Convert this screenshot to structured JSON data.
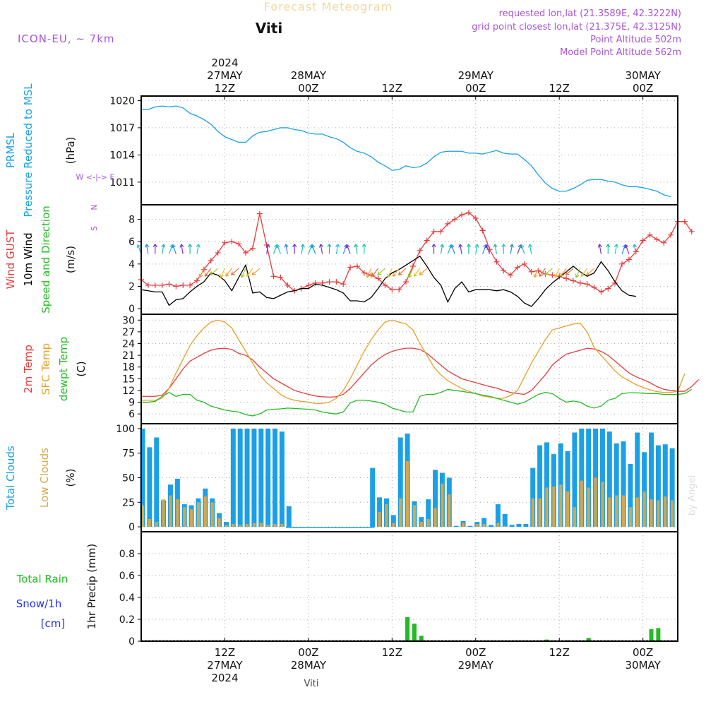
{
  "header": {
    "title": "Forecast Meteogram",
    "location": "Viti",
    "model": "ICON-EU, ~ 7km",
    "requested": "requested lon,lat (21.3589E, 42.3222N)",
    "gridpoint": "grid point closest lon,lat (21.375E, 42.3125N)",
    "point_alt": "Point Altitude 502m",
    "model_alt": "Model Point Altitude 562m",
    "watermark": "by Angel",
    "footer": "Viti"
  },
  "time_axis": {
    "top_labels": [
      {
        "t": 12,
        "lines": [
          "2024",
          "27MAY",
          "12Z"
        ]
      },
      {
        "t": 24,
        "lines": [
          "28MAY",
          "00Z"
        ]
      },
      {
        "t": 36,
        "lines": [
          "12Z"
        ]
      },
      {
        "t": 48,
        "lines": [
          "29MAY",
          "00Z"
        ]
      },
      {
        "t": 60,
        "lines": [
          "12Z"
        ]
      },
      {
        "t": 72,
        "lines": [
          "30MAY",
          "00Z"
        ]
      }
    ],
    "bottom_labels": [
      {
        "t": 12,
        "lines": [
          "12Z",
          "27MAY",
          "2024"
        ]
      },
      {
        "t": 24,
        "lines": [
          "00Z",
          "28MAY"
        ]
      },
      {
        "t": 36,
        "lines": [
          "12Z"
        ]
      },
      {
        "t": 48,
        "lines": [
          "00Z",
          "29MAY"
        ]
      },
      {
        "t": 60,
        "lines": [
          "12Z"
        ]
      },
      {
        "t": 72,
        "lines": [
          "00Z",
          "30MAY"
        ]
      }
    ]
  },
  "chart_data": [
    {
      "type": "line",
      "id": "pressure",
      "ylabel_lines": [
        "PRMSL",
        "Pressure Reduced to MSL"
      ],
      "unit": "(hPa)",
      "ylim": [
        1008.5,
        1020.5
      ],
      "yticks": [
        1011,
        1014,
        1017,
        1020
      ],
      "series": [
        {
          "name": "PRMSL",
          "color": "#1aa0e6",
          "values": [
            1019,
            1019,
            1019.3,
            1019.4,
            1019.3,
            1019.4,
            1019.2,
            1018.6,
            1018.3,
            1017.9,
            1017.4,
            1016.6,
            1016,
            1015.7,
            1015.4,
            1015.4,
            1016.1,
            1016.5,
            1016.6,
            1016.8,
            1017,
            1017,
            1016.8,
            1016.7,
            1016.4,
            1016.3,
            1016.3,
            1016,
            1015.8,
            1015.4,
            1014.8,
            1014.4,
            1014.2,
            1013.8,
            1013.2,
            1012.8,
            1012.3,
            1012.4,
            1012.8,
            1012.6,
            1012.7,
            1013.1,
            1013.8,
            1014.3,
            1014.4,
            1014.4,
            1014.4,
            1014.2,
            1014.2,
            1014.1,
            1014.3,
            1014.5,
            1014.2,
            1014.1,
            1014.1,
            1013.5,
            1012.8,
            1011.8,
            1010.9,
            1010.3,
            1010,
            1010,
            1010.3,
            1010.7,
            1011.2,
            1011.3,
            1011.3,
            1011.1,
            1011,
            1010.7,
            1010.5,
            1010.5,
            1010.4,
            1010.2,
            1010,
            1009.6,
            1009.4
          ]
        }
      ]
    },
    {
      "type": "line",
      "id": "wind",
      "ylabel_lines": [
        "Wind GUST",
        "10m Wind",
        "Speed and Direction"
      ],
      "ylabel_colors": [
        "#e63c3c",
        "#000000",
        "#22bb22"
      ],
      "unit": "(m/s)",
      "compass": [
        "N",
        "W <-|-> E",
        "S"
      ],
      "ylim": [
        -0.5,
        9.3
      ],
      "yticks": [
        0,
        2,
        4,
        6,
        8
      ],
      "series": [
        {
          "name": "Wind GUST",
          "color": "#e63c3c",
          "values": [
            2.6,
            2.1,
            2.1,
            2.1,
            2.2,
            2,
            2.1,
            2.1,
            2.5,
            3.5,
            4.3,
            5,
            5.9,
            6,
            5.8,
            5,
            5.4,
            8.5,
            5.7,
            2.9,
            2.8,
            2.1,
            1.6,
            1.8,
            2.1,
            2.3,
            2.3,
            2.4,
            2.4,
            2.2,
            3.7,
            3.8,
            3.2,
            3,
            2.7,
            2.1,
            1.7,
            1.7,
            2.4,
            3.8,
            5.2,
            6.1,
            6.9,
            6.9,
            7.6,
            8,
            8.4,
            8.6,
            8.1,
            7,
            5.3,
            4.2,
            3.4,
            3,
            3.7,
            4,
            3.3,
            3.4,
            3.1,
            3,
            2.9,
            2.7,
            2.5,
            2.3,
            2.2,
            1.9,
            1.5,
            1.8,
            2.3,
            4,
            4.4,
            5.1,
            6.1,
            6.6,
            6.2,
            5.9,
            6.6,
            7.8,
            7.8,
            6.9
          ]
        },
        {
          "name": "10m Wind",
          "color": "#000000",
          "values": [
            1.7,
            1.6,
            1.5,
            1.5,
            0.3,
            0.8,
            0.9,
            1.5,
            2,
            2.4,
            3.2,
            3,
            2.5,
            1.6,
            2.8,
            3.9,
            1.4,
            1.5,
            1,
            0.9,
            1.2,
            1.5,
            1.6,
            1.8,
            1.8,
            2.2,
            2.1,
            1.9,
            1.7,
            1.4,
            0.7,
            0.7,
            0.6,
            1,
            1.8,
            2.7,
            3.2,
            3.5,
            3.9,
            4.3,
            4.7,
            3.8,
            2.8,
            2.1,
            0.6,
            1.8,
            2.4,
            1.5,
            1.7,
            1.7,
            1.7,
            1.6,
            1.7,
            1.5,
            1.1,
            0.5,
            0.2,
            0.9,
            1.7,
            2.3,
            2.8,
            3.3,
            3.8,
            3.3,
            2.9,
            3.2,
            4.2,
            3.4,
            2.4,
            1.6,
            1.2,
            1.1
          ]
        }
      ]
    },
    {
      "type": "line",
      "id": "temperature",
      "ylabel_lines": [
        "2m Temp",
        "SFC Temp",
        "dewpt Temp"
      ],
      "ylabel_colors": [
        "#e63c3c",
        "#e6a028",
        "#22bb22"
      ],
      "unit": "(C)",
      "ylim": [
        3.5,
        31.5
      ],
      "yticks": [
        6,
        9,
        12,
        15,
        18,
        21,
        24,
        27,
        30
      ],
      "series": [
        {
          "name": "2m Temp",
          "color": "#e63c3c",
          "values": [
            10.5,
            10.5,
            10.5,
            10.8,
            12.5,
            15,
            17.5,
            19.5,
            20.5,
            21.5,
            22.3,
            22.7,
            22.8,
            22.5,
            21.5,
            21,
            19.8,
            18,
            16.5,
            15,
            14,
            13,
            12,
            11.5,
            11,
            10.6,
            10.4,
            10.3,
            10.4,
            11,
            12.5,
            14.5,
            16.5,
            18.5,
            20,
            21.2,
            22,
            22.5,
            22.8,
            22.8,
            22.5,
            21.5,
            20,
            18.5,
            17,
            16,
            15,
            14.5,
            14,
            13.5,
            13,
            12.6,
            12,
            11.5,
            11.2,
            11,
            12,
            14,
            16,
            18.5,
            20,
            21.3,
            21.8,
            22.3,
            22.8,
            22.6,
            22,
            21,
            19.5,
            18,
            16.5,
            15.5,
            14.8,
            14,
            13,
            12.3,
            12,
            11.8,
            11.8,
            13,
            14.8
          ]
        },
        {
          "name": "SFC Temp",
          "color": "#e6a028",
          "values": [
            9.5,
            9.5,
            9.5,
            10,
            12.5,
            16.5,
            20,
            23.5,
            26,
            28,
            29.5,
            30,
            29.5,
            28,
            25,
            22,
            19,
            16,
            14,
            12.5,
            11,
            10,
            9.5,
            9.2,
            9,
            8.7,
            8.7,
            9,
            10,
            12,
            15,
            18.5,
            22,
            25,
            27.5,
            29.5,
            30,
            29.5,
            29,
            27.5,
            24,
            21,
            18,
            16,
            14.5,
            13.5,
            12.5,
            11.8,
            11.2,
            10.6,
            10.3,
            10,
            10,
            10.7,
            12,
            15.5,
            19,
            22,
            25,
            27.5,
            28,
            28.5,
            29,
            29.2,
            27,
            23,
            21,
            19,
            17,
            15.5,
            14.5,
            13.5,
            12.8,
            12.2,
            11.7,
            11.5,
            11.5,
            11.8,
            16.3
          ]
        },
        {
          "name": "dewpt Temp",
          "color": "#22bb22",
          "values": [
            9,
            9,
            9.2,
            10.5,
            11.5,
            10.5,
            11,
            11,
            9.5,
            9,
            8,
            7.5,
            7,
            6.7,
            6.5,
            5.8,
            5.5,
            6,
            7,
            7.2,
            7.3,
            7.5,
            7.4,
            7.3,
            7.2,
            7,
            6.5,
            6.2,
            6,
            6.5,
            8.8,
            9.5,
            9.5,
            9.3,
            9,
            8.5,
            7.5,
            7,
            6.5,
            6.5,
            10.5,
            11,
            11,
            11.5,
            12.3,
            12,
            11.8,
            11.5,
            11.2,
            10.8,
            10.5,
            10,
            9.5,
            9,
            8.5,
            9,
            10,
            11,
            11.5,
            11.2,
            10,
            9,
            9.3,
            9,
            8,
            7.5,
            8,
            9.5,
            10,
            11.2,
            11.4,
            11.4,
            11.3,
            11.2,
            11.2,
            11,
            11,
            11,
            11.2,
            12.3
          ]
        }
      ]
    },
    {
      "type": "bar",
      "id": "clouds",
      "ylabel_lines": [
        "Total Clouds",
        "Low Clouds"
      ],
      "ylabel_colors": [
        "#1aa0e6",
        "#d4a84a"
      ],
      "unit": "(%)",
      "ylim": [
        -5,
        105
      ],
      "yticks": [
        0,
        25,
        50,
        75,
        100
      ],
      "series": [
        {
          "name": "Total Clouds",
          "color": "#1aa0e6",
          "values": [
            100,
            81,
            91,
            27,
            43,
            49,
            23,
            22,
            29,
            39,
            29,
            14,
            5,
            100,
            100,
            100,
            100,
            100,
            100,
            100,
            97,
            21,
            0,
            0,
            0,
            0,
            0,
            0,
            0,
            0,
            0,
            0,
            0,
            60,
            30,
            29,
            12,
            91,
            95,
            26,
            10,
            28,
            58,
            55,
            50,
            1,
            6,
            1,
            5,
            9,
            2,
            23,
            13,
            2,
            3,
            3,
            60,
            83,
            86,
            74,
            85,
            77,
            96,
            100,
            100,
            100,
            100,
            97,
            85,
            87,
            64,
            96,
            76,
            96,
            83,
            84,
            80
          ]
        },
        {
          "name": "Low Clouds",
          "color": "#d4a84a",
          "values": [
            22,
            8,
            5,
            28,
            32,
            28,
            20,
            18,
            25,
            31,
            25,
            9,
            2,
            3,
            2,
            3,
            4,
            4,
            2,
            3,
            3,
            0,
            0,
            0,
            0,
            0,
            0,
            0,
            0,
            0,
            0,
            0,
            0,
            0,
            15,
            23,
            4,
            29,
            67,
            22,
            5,
            8,
            19,
            44,
            33,
            0,
            4,
            0,
            3,
            3,
            0,
            4,
            1,
            0,
            0,
            0,
            29,
            29,
            40,
            41,
            43,
            36,
            20,
            47,
            40,
            50,
            46,
            30,
            32,
            32,
            20,
            30,
            36,
            28,
            27,
            31,
            27
          ]
        }
      ]
    },
    {
      "type": "bar",
      "id": "precip",
      "ylabel_lines": [
        "Total  Rain",
        "Snow/1h",
        "[cm]"
      ],
      "ylabel_colors": [
        "#22bb22",
        "#2233ee",
        "#2233ee"
      ],
      "unit": "1hr Precip (mm)",
      "ylim": [
        0,
        1.0
      ],
      "yticks": [
        0,
        0.2,
        0.4,
        0.6,
        0.8
      ],
      "series": [
        {
          "name": "Total Rain",
          "color": "#22bb22",
          "values": [
            0,
            0,
            0,
            0,
            0,
            0,
            0,
            0,
            0,
            0,
            0,
            0,
            0,
            0,
            0,
            0,
            0,
            0,
            0,
            0,
            0,
            0,
            0,
            0,
            0,
            0,
            0,
            0,
            0,
            0,
            0,
            0,
            0,
            0,
            0,
            0,
            0,
            0,
            0.22,
            0.16,
            0.05,
            0,
            0,
            0,
            0,
            0,
            0,
            0,
            0,
            0,
            0,
            0,
            0,
            0,
            0,
            0,
            0,
            0,
            0.015,
            0,
            0,
            0.01,
            0,
            0,
            0.03,
            0,
            0,
            0,
            0,
            0,
            0,
            0,
            0,
            0.11,
            0.12,
            0
          ]
        }
      ]
    }
  ]
}
